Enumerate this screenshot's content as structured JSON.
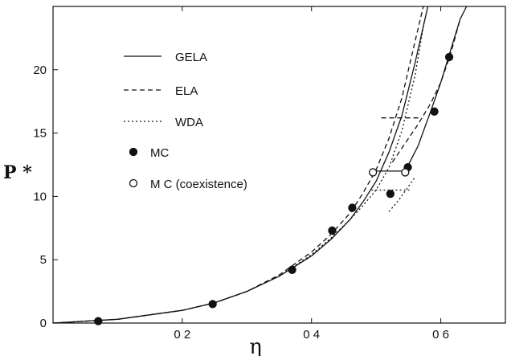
{
  "chart_data": {
    "type": "line",
    "xlabel": "η",
    "ylabel": "P *",
    "xlim": [
      0,
      0.7
    ],
    "ylim": [
      0,
      25
    ],
    "xticks": [
      {
        "value": 0.2,
        "label": "0 2"
      },
      {
        "value": 0.4,
        "label": "0 4"
      },
      {
        "value": 0.6,
        "label": "0 6"
      }
    ],
    "yticks": [
      {
        "value": 0,
        "label": "0"
      },
      {
        "value": 5,
        "label": "5"
      },
      {
        "value": 10,
        "label": "10"
      },
      {
        "value": 15,
        "label": "15"
      },
      {
        "value": 20,
        "label": "20"
      }
    ],
    "grid": false,
    "legend_position": "upper-left",
    "series": [
      {
        "name": "GELA",
        "style": "solid",
        "segments": [
          {
            "x": [
              0.0,
              0.1,
              0.2,
              0.25,
              0.3,
              0.35,
              0.4,
              0.43,
              0.46,
              0.48,
              0.5,
              0.52,
              0.54,
              0.56,
              0.58
            ],
            "y": [
              0.0,
              0.3,
              1.0,
              1.6,
              2.5,
              3.7,
              5.3,
              6.6,
              8.2,
              9.6,
              11.2,
              13.5,
              16.4,
              20.5,
              25.0
            ]
          },
          {
            "x": [
              0.545,
              0.565,
              0.585,
              0.6,
              0.615,
              0.63,
              0.64
            ],
            "y": [
              12.0,
              14.0,
              16.8,
              19.0,
              21.5,
              24.0,
              25.0
            ]
          }
        ]
      },
      {
        "name": "ELA",
        "style": "dashed",
        "segments": [
          {
            "x": [
              0.0,
              0.1,
              0.2,
              0.25,
              0.3,
              0.35,
              0.4,
              0.43,
              0.46,
              0.48,
              0.5,
              0.52,
              0.54,
              0.56,
              0.573
            ],
            "y": [
              0.0,
              0.3,
              1.0,
              1.6,
              2.5,
              3.8,
              5.6,
              7.0,
              8.7,
              10.3,
              12.1,
              14.6,
              17.8,
              22.2,
              25.0
            ]
          },
          {
            "x": [
              0.525,
              0.545,
              0.565,
              0.585,
              0.6,
              0.615,
              0.63
            ],
            "y": [
              12.7,
              14.2,
              15.7,
              17.4,
              19.0,
              21.2,
              24.0
            ]
          }
        ]
      },
      {
        "name": "WDA",
        "style": "dotted",
        "segments": [
          {
            "x": [
              0.0,
              0.1,
              0.2,
              0.25,
              0.3,
              0.35,
              0.4,
              0.43,
              0.46,
              0.48,
              0.5,
              0.52,
              0.54,
              0.56,
              0.575
            ],
            "y": [
              0.0,
              0.3,
              1.0,
              1.6,
              2.5,
              3.7,
              5.4,
              6.7,
              8.2,
              9.3,
              10.5,
              12.3,
              15.2,
              19.5,
              24.0
            ]
          },
          {
            "x": [
              0.52,
              0.535,
              0.55,
              0.56
            ],
            "y": [
              8.8,
              9.7,
              10.8,
              11.5
            ]
          }
        ]
      }
    ],
    "tie_lines": [
      {
        "style": "solid",
        "x": [
          0.495,
          0.545
        ],
        "y": [
          12.0,
          12.0
        ]
      },
      {
        "style": "dashed",
        "x": [
          0.508,
          0.568
        ],
        "y": [
          16.2,
          16.2
        ]
      },
      {
        "style": "dotted",
        "x": [
          0.493,
          0.553
        ],
        "y": [
          10.5,
          10.5
        ]
      }
    ],
    "points": [
      {
        "name": "MC",
        "marker": "filled-circle",
        "x": [
          0.07,
          0.247,
          0.37,
          0.432,
          0.463,
          0.522,
          0.549,
          0.59,
          0.613
        ],
        "y": [
          0.15,
          1.5,
          4.2,
          7.3,
          9.1,
          10.2,
          12.3,
          16.7,
          21.0
        ]
      },
      {
        "name": "M C (coexistence)",
        "marker": "open-circle",
        "x": [
          0.495,
          0.545
        ],
        "y": [
          11.9,
          11.9
        ]
      }
    ],
    "legend": [
      {
        "label": "GELA",
        "kind": "solid"
      },
      {
        "label": "ELA",
        "kind": "dashed"
      },
      {
        "label": "WDA",
        "kind": "dotted"
      },
      {
        "label": "MC",
        "kind": "filled-circle"
      },
      {
        "label": "M C (coexistence)",
        "kind": "open-circle"
      }
    ]
  }
}
